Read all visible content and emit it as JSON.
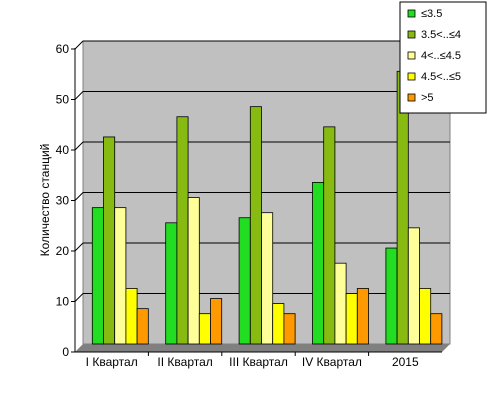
{
  "chart_data": {
    "type": "bar",
    "title": "",
    "xlabel": "",
    "ylabel": "Количество станций",
    "ylim": [
      0,
      60
    ],
    "yticks": [
      0,
      10,
      20,
      30,
      40,
      50,
      60
    ],
    "grid": true,
    "legend_position": "top-right",
    "plot_background": "#c0c0c0",
    "categories": [
      "I Квартал",
      "II Квартал",
      "III Квартал",
      "IV Квартал",
      "2015"
    ],
    "series": [
      {
        "name": "≤3.5",
        "color": "#22dd22",
        "values": [
          27,
          24,
          25,
          32,
          19
        ]
      },
      {
        "name": "3.5<..≤4",
        "color": "#88bb11",
        "values": [
          41,
          45,
          47,
          43,
          54
        ]
      },
      {
        "name": "4<..≤4.5",
        "color": "#ffff99",
        "values": [
          27,
          29,
          26,
          16,
          23
        ]
      },
      {
        "name": "4.5<..≤5",
        "color": "#ffff00",
        "values": [
          11,
          6,
          8,
          10,
          11
        ]
      },
      {
        "name": ">5",
        "color": "#ff9900",
        "values": [
          7,
          9,
          6,
          11,
          6
        ]
      }
    ]
  }
}
